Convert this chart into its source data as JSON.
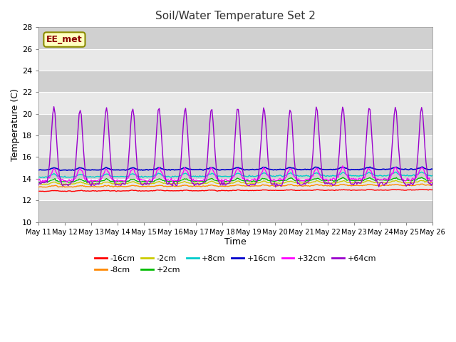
{
  "title": "Soil/Water Temperature Set 2",
  "xlabel": "Time",
  "ylabel": "Temperature (C)",
  "ylim": [
    10,
    28
  ],
  "xlim": [
    0,
    360
  ],
  "annotation_text": "EE_met",
  "annotation_box_color": "#ffffc0",
  "annotation_border_color": "#8b8b00",
  "background_color": "#ffffff",
  "plot_bg_light": "#e8e8e8",
  "plot_bg_dark": "#d0d0d0",
  "grid_color": "#ffffff",
  "series_params": {
    "-16cm": {
      "color": "#ff0000",
      "base": 12.85,
      "daily_amp": 0.05,
      "trend": 0.008,
      "noise": 0.015,
      "lw": 1.0
    },
    "-8cm": {
      "color": "#ff8800",
      "base": 13.25,
      "daily_amp": 0.1,
      "trend": 0.01,
      "noise": 0.02,
      "lw": 1.0
    },
    "-2cm": {
      "color": "#cccc00",
      "base": 13.5,
      "daily_amp": 0.18,
      "trend": 0.011,
      "noise": 0.025,
      "lw": 1.0
    },
    "+2cm": {
      "color": "#00bb00",
      "base": 13.7,
      "daily_amp": 0.22,
      "trend": 0.012,
      "noise": 0.03,
      "lw": 1.0
    },
    "+8cm": {
      "color": "#00cccc",
      "base": 14.15,
      "daily_amp": 0.28,
      "trend": 0.011,
      "noise": 0.03,
      "lw": 1.0
    },
    "+16cm": {
      "color": "#0000cc",
      "base": 14.8,
      "daily_amp": 0.2,
      "trend": 0.005,
      "noise": 0.02,
      "lw": 1.2
    },
    "+32cm": {
      "color": "#ff00ff",
      "base": 13.8,
      "daily_amp": 1.1,
      "trend": 0.008,
      "noise": 0.08,
      "lw": 1.0
    },
    "+64cm": {
      "color": "#9900cc",
      "base": 13.5,
      "daily_amp": 7.0,
      "trend": 0.0,
      "noise": 0.1,
      "lw": 1.0
    }
  },
  "xtick_labels": [
    "May 11",
    "May 12",
    "May 13",
    "May 14",
    "May 15",
    "May 16",
    "May 17",
    "May 18",
    "May 19",
    "May 20",
    "May 21",
    "May 22",
    "May 23",
    "May 24",
    "May 25",
    "May 26"
  ],
  "ytick_values": [
    10,
    12,
    14,
    16,
    18,
    20,
    22,
    24,
    26,
    28
  ],
  "band_pairs": [
    [
      10,
      12
    ],
    [
      14,
      16
    ],
    [
      18,
      20
    ],
    [
      22,
      24
    ],
    [
      26,
      28
    ]
  ]
}
